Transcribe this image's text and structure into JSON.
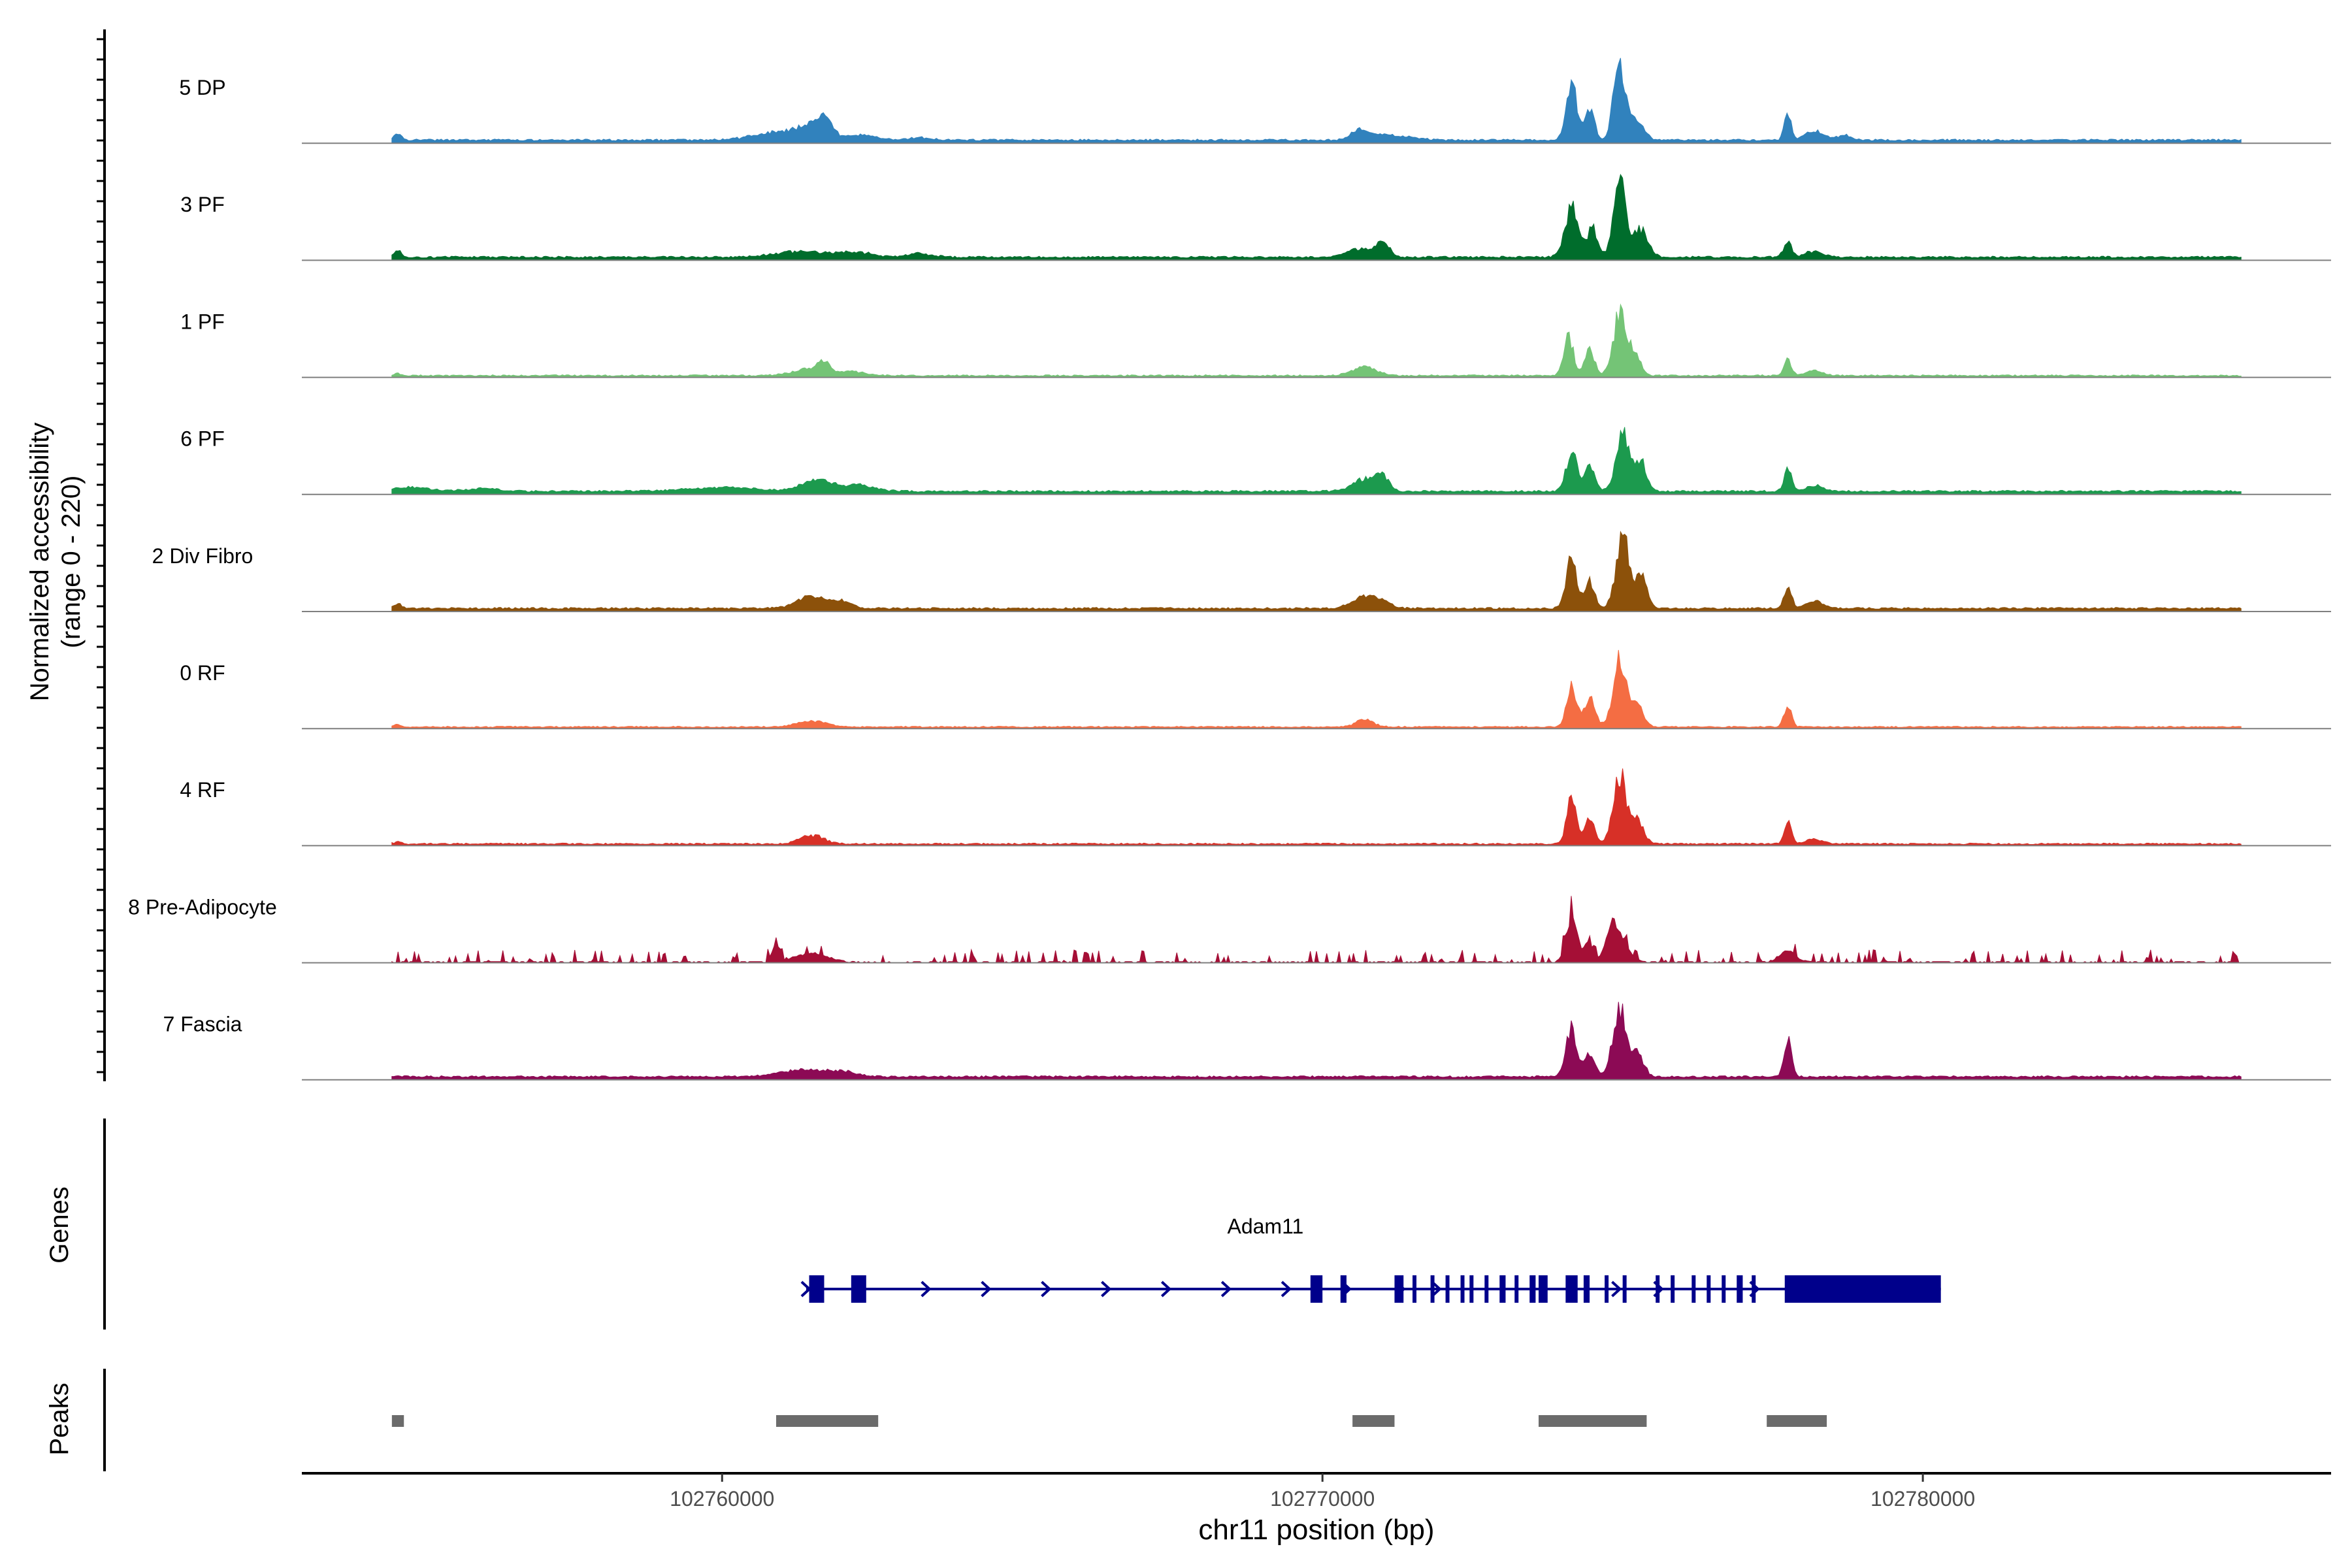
{
  "chart_data": {
    "type": "area",
    "genome": "chr11",
    "xlim": [
      102753000,
      102786800
    ],
    "ylim": [
      0,
      220
    ],
    "ylabel_line1": "Normalized accessibility",
    "ylabel_line2": "(range 0 - 220)",
    "xlabel": "chr11 position (bp)",
    "x_ticks": [
      {
        "value": 102760000,
        "label": "102760000"
      },
      {
        "value": 102770000,
        "label": "102770000"
      },
      {
        "value": 102780000,
        "label": "102780000"
      }
    ],
    "series": [
      {
        "name": "5 DP",
        "color": "#3182bd",
        "base": 2,
        "noise": 1.5,
        "peaks": [
          [
            102754600,
            5,
            60
          ],
          [
            102760900,
            6,
            400
          ],
          [
            102761500,
            10,
            250
          ],
          [
            102761700,
            14,
            120
          ],
          [
            102762300,
            4,
            250
          ],
          [
            102763300,
            2,
            200
          ],
          [
            102770600,
            8,
            120
          ],
          [
            102771000,
            5,
            250
          ],
          [
            102771500,
            2,
            200
          ],
          [
            102774150,
            48,
            90
          ],
          [
            102774450,
            26,
            80
          ],
          [
            102775000,
            34,
            110
          ],
          [
            102774900,
            34,
            80
          ],
          [
            102775250,
            15,
            110
          ],
          [
            102777750,
            24,
            55
          ],
          [
            102778200,
            7,
            160
          ],
          [
            102778700,
            4,
            120
          ]
        ]
      },
      {
        "name": "3 PF",
        "color": "#006d2c",
        "base": 2,
        "noise": 1.5,
        "peaks": [
          [
            102754600,
            6,
            60
          ],
          [
            102761300,
            5,
            400
          ],
          [
            102762200,
            4,
            300
          ],
          [
            102763300,
            3,
            200
          ],
          [
            102770600,
            7,
            200
          ],
          [
            102771000,
            13,
            110
          ],
          [
            102774150,
            42,
            110
          ],
          [
            102774500,
            24,
            90
          ],
          [
            102774950,
            62,
            100
          ],
          [
            102775300,
            24,
            120
          ],
          [
            102777750,
            12,
            70
          ],
          [
            102778200,
            5,
            150
          ]
        ]
      },
      {
        "name": "1 PF",
        "color": "#74c476",
        "base": 1,
        "noise": 1.2,
        "peaks": [
          [
            102754600,
            2,
            60
          ],
          [
            102761500,
            6,
            300
          ],
          [
            102761700,
            8,
            90
          ],
          [
            102762200,
            3,
            200
          ],
          [
            102770700,
            7,
            200
          ],
          [
            102774100,
            32,
            80
          ],
          [
            102774450,
            22,
            80
          ],
          [
            102774950,
            50,
            110
          ],
          [
            102775200,
            18,
            100
          ],
          [
            102777750,
            13,
            60
          ],
          [
            102778200,
            4,
            140
          ]
        ]
      },
      {
        "name": "6 PF",
        "color": "#1c9a4e",
        "base": 2,
        "noise": 1.5,
        "peaks": [
          [
            102754800,
            3,
            300
          ],
          [
            102756000,
            2,
            300
          ],
          [
            102760000,
            3,
            600
          ],
          [
            102761600,
            10,
            250
          ],
          [
            102762300,
            5,
            250
          ],
          [
            102770700,
            10,
            200
          ],
          [
            102771000,
            12,
            100
          ],
          [
            102774150,
            33,
            90
          ],
          [
            102774450,
            20,
            90
          ],
          [
            102775000,
            50,
            110
          ],
          [
            102775300,
            25,
            100
          ],
          [
            102777750,
            20,
            60
          ],
          [
            102778200,
            5,
            150
          ]
        ]
      },
      {
        "name": "2 Div Fibro",
        "color": "#8c510a",
        "base": 2,
        "noise": 1.5,
        "peaks": [
          [
            102754600,
            4,
            60
          ],
          [
            102761500,
            10,
            250
          ],
          [
            102762000,
            6,
            150
          ],
          [
            102770700,
            10,
            200
          ],
          [
            102771000,
            5,
            150
          ],
          [
            102774150,
            42,
            90
          ],
          [
            102774450,
            22,
            80
          ],
          [
            102775000,
            60,
            110
          ],
          [
            102775300,
            27,
            100
          ],
          [
            102777750,
            20,
            60
          ],
          [
            102778200,
            6,
            140
          ]
        ]
      },
      {
        "name": "0 RF",
        "color": "#f46d43",
        "base": 1,
        "noise": 1.0,
        "peaks": [
          [
            102754600,
            2,
            60
          ],
          [
            102761500,
            5,
            250
          ],
          [
            102770700,
            6,
            150
          ],
          [
            102774150,
            36,
            80
          ],
          [
            102774450,
            26,
            90
          ],
          [
            102774950,
            56,
            110
          ],
          [
            102775250,
            18,
            100
          ],
          [
            102777750,
            19,
            60
          ]
        ]
      },
      {
        "name": "4 RF",
        "color": "#d73027",
        "base": 1,
        "noise": 1.2,
        "peaks": [
          [
            102754600,
            2,
            60
          ],
          [
            102761500,
            7,
            200
          ],
          [
            102774150,
            40,
            80
          ],
          [
            102774450,
            22,
            80
          ],
          [
            102774950,
            58,
            110
          ],
          [
            102775250,
            20,
            100
          ],
          [
            102777750,
            18,
            60
          ],
          [
            102778200,
            4,
            140
          ]
        ]
      },
      {
        "name": "8 Pre-Adipocyte",
        "color": "#a50f36",
        "base": 0,
        "noise": 0,
        "spiky": true,
        "peaks": [
          [
            102760900,
            16,
            60
          ],
          [
            102761500,
            8,
            250
          ],
          [
            102774150,
            40,
            90
          ],
          [
            102774450,
            18,
            80
          ],
          [
            102774800,
            28,
            90
          ],
          [
            102775000,
            18,
            120
          ],
          [
            102777750,
            9,
            140
          ]
        ]
      },
      {
        "name": "7 Fascia",
        "color": "#8c0a55",
        "base": 2,
        "noise": 1.5,
        "peaks": [
          [
            102761300,
            6,
            350
          ],
          [
            102762000,
            4,
            250
          ],
          [
            102774150,
            40,
            90
          ],
          [
            102774450,
            18,
            90
          ],
          [
            102774950,
            58,
            110
          ],
          [
            102775250,
            20,
            100
          ],
          [
            102777750,
            34,
            60
          ]
        ]
      }
    ],
    "genes_label": "Genes",
    "gene": {
      "name": "Adam11",
      "start": 102761400,
      "end": 102780300,
      "color": "#00008b",
      "exons": [
        [
          102761450,
          102761700
        ],
        [
          102762150,
          102762400
        ],
        [
          102769800,
          102770000
        ],
        [
          102770300,
          102770400
        ],
        [
          102771200,
          102771350
        ],
        [
          102771500,
          102771550
        ],
        [
          102771800,
          102771850
        ],
        [
          102772050,
          102772100
        ],
        [
          102772300,
          102772350
        ],
        [
          102772450,
          102772500
        ],
        [
          102772700,
          102772750
        ],
        [
          102772950,
          102773050
        ],
        [
          102773200,
          102773250
        ],
        [
          102773450,
          102773550
        ],
        [
          102773600,
          102773750
        ],
        [
          102774050,
          102774250
        ],
        [
          102774350,
          102774450
        ],
        [
          102774700,
          102774750
        ],
        [
          102775000,
          102775050
        ],
        [
          102775550,
          102775600
        ],
        [
          102775800,
          102775850
        ],
        [
          102776150,
          102776200
        ],
        [
          102776400,
          102776450
        ],
        [
          102776650,
          102776700
        ],
        [
          102776900,
          102777000
        ],
        [
          102777150,
          102777200
        ],
        [
          102777700,
          102780300
        ]
      ],
      "arrows": [
        102761400,
        102763400,
        102764400,
        102765400,
        102766400,
        102767400,
        102768400,
        102769400,
        102770400,
        102771300,
        102771900,
        102774900,
        102775600,
        102777200
      ]
    },
    "peaks_label": "Peaks",
    "peaks": [
      [
        102754500,
        102754700
      ],
      [
        102760900,
        102762600
      ],
      [
        102770500,
        102771200
      ],
      [
        102773600,
        102775400
      ],
      [
        102777400,
        102778400
      ]
    ],
    "peak_color": "#6b6b6b"
  }
}
